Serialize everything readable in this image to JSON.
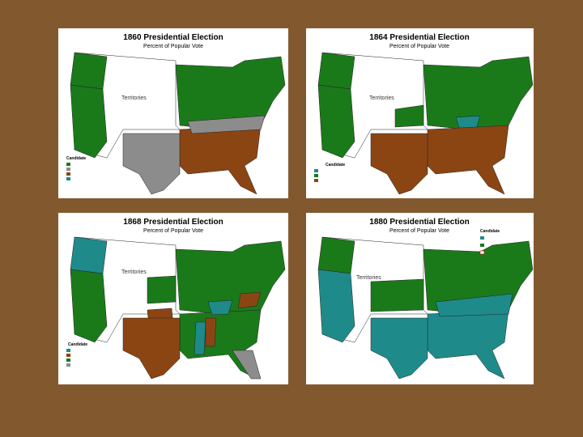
{
  "panels": [
    {
      "title": "1860 Presidential Election",
      "subtitle": "Percent of Popular Vote",
      "territory_label": "Territories",
      "legend_title": "Candidate"
    },
    {
      "title": "1864 Presidential Election",
      "subtitle": "Percent of Popular Vote",
      "territory_label": "Territories",
      "legend_title": "Candidate"
    },
    {
      "title": "1868 Presidential Election",
      "subtitle": "Percent of Popular Vote",
      "territory_label": "Territories",
      "legend_title": "Candidate"
    },
    {
      "title": "1880 Presidential Election",
      "subtitle": "Percent of Popular Vote",
      "territory_label": "Territories",
      "legend_title": "Candidate"
    }
  ]
}
